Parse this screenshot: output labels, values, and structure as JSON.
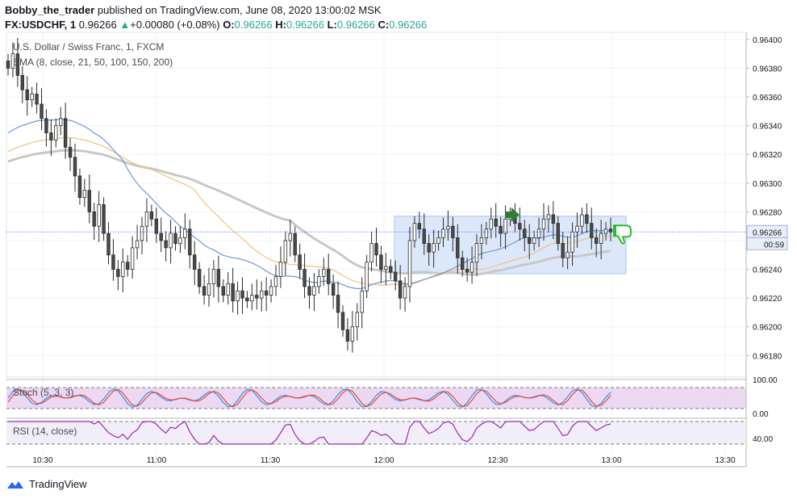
{
  "header": {
    "author": "Bobby_the_trader",
    "published": "published on TradingView.com, June 08, 2020 13:00:02 MSK",
    "symbol": "FX:USDCHF, 1",
    "last": "0.96266",
    "change": "+0.00080 (+0.08%)",
    "o_label": "O:",
    "o": "0.96266",
    "h_label": "H:",
    "h": "0.96266",
    "l_label": "L:",
    "l": "0.96266",
    "c_label": "C:",
    "c": "0.96266"
  },
  "legend": {
    "instrument": "U.S. Dollar / Swiss Franc, 1, FXCM",
    "indicator": "SMA (8, close, 21, 50, 100, 150, 200)"
  },
  "price_badge": {
    "price": "0.96266",
    "countdown": "00:59"
  },
  "stoch_label": "Stoch (5, 3, 3)",
  "rsi_label": "RSI (14, close)",
  "stoch_axis": [
    "100.00",
    "0.00"
  ],
  "rsi_axis": [
    "40.00"
  ],
  "footer": {
    "brand": "TradingView"
  },
  "colors": {
    "up_candle": "#2b2b2b",
    "down_candle": "#2b2b2b",
    "candle_body_up": "#ffffff",
    "candle_body_down": "#4a4a4a",
    "sma_blue": "#6b9bd1",
    "sma_orange": "#f0c27a",
    "sma_grey": "#c8c8c8",
    "range_box": "#c5d8f7",
    "arrow_green": "#2e7d32",
    "thumb_green": "#2bbd2b",
    "stoch_k": "#2196f3",
    "stoch_d": "#f44336",
    "stoch_band": "#e1bee7",
    "rsi_line": "#9c27b0",
    "rsi_band": "#ede7f6",
    "tv_blue": "#2962ff"
  },
  "chart_data": {
    "type": "candlestick",
    "symbol": "USDCHF",
    "timeframe": "1 minute",
    "y_axis": {
      "ticks": [
        0.964,
        0.9638,
        0.9636,
        0.9634,
        0.9632,
        0.963,
        0.9628,
        0.9626,
        0.9624,
        0.9622,
        0.962,
        0.9618
      ],
      "tick_labels": [
        "0.96400",
        "0.96380",
        "0.96360",
        "0.96340",
        "0.96320",
        "0.96300",
        "0.96280",
        "0.96260",
        "0.96240",
        "0.96220",
        "0.96200",
        "0.96180"
      ]
    },
    "x_axis": {
      "tick_labels": [
        "10:30",
        "11:00",
        "11:30",
        "12:00",
        "12:30",
        "13:00",
        "13:30"
      ]
    },
    "candles_close": [
      0.9638,
      0.9639,
      0.96375,
      0.96365,
      0.96358,
      0.96362,
      0.96355,
      0.96345,
      0.96335,
      0.9633,
      0.9634,
      0.96345,
      0.96325,
      0.96318,
      0.96305,
      0.9629,
      0.96295,
      0.9628,
      0.9627,
      0.96285,
      0.96265,
      0.9625,
      0.9624,
      0.96235,
      0.96245,
      0.9624,
      0.96255,
      0.9626,
      0.9627,
      0.9628,
      0.96275,
      0.96265,
      0.9626,
      0.96255,
      0.96265,
      0.96258,
      0.96262,
      0.96268,
      0.9625,
      0.9624,
      0.96228,
      0.96222,
      0.9623,
      0.9624,
      0.96228,
      0.96222,
      0.9623,
      0.96218,
      0.96225,
      0.9622,
      0.96218,
      0.96222,
      0.9622,
      0.96225,
      0.96222,
      0.96228,
      0.96235,
      0.96245,
      0.9626,
      0.96265,
      0.9625,
      0.9624,
      0.96228,
      0.96222,
      0.96228,
      0.96235,
      0.9624,
      0.9623,
      0.96222,
      0.9621,
      0.96198,
      0.9619,
      0.962,
      0.9621,
      0.96225,
      0.96245,
      0.96258,
      0.9625,
      0.9624,
      0.96242,
      0.96238,
      0.96232,
      0.9622,
      0.96228,
      0.9626,
      0.96272,
      0.96268,
      0.96258,
      0.96252,
      0.96258,
      0.96262,
      0.96268,
      0.9627,
      0.96262,
      0.96248,
      0.9624,
      0.96238,
      0.96245,
      0.96258,
      0.96262,
      0.96268,
      0.96275,
      0.9627,
      0.96265,
      0.96275,
      0.96278,
      0.96272,
      0.96268,
      0.96262,
      0.96258,
      0.96262,
      0.96268,
      0.96275,
      0.96278,
      0.96272,
      0.96258,
      0.96248,
      0.96252,
      0.96266,
      0.9627,
      0.96278,
      0.96272,
      0.96262,
      0.96258,
      0.96265,
      0.96268,
      0.96266
    ],
    "range_box": {
      "y_top": 0.96277,
      "y_bottom": 0.96237
    },
    "current_price": 0.96266,
    "stoch": {
      "levels": [
        80,
        20
      ]
    },
    "rsi": {
      "levels": [
        70,
        30
      ]
    }
  }
}
